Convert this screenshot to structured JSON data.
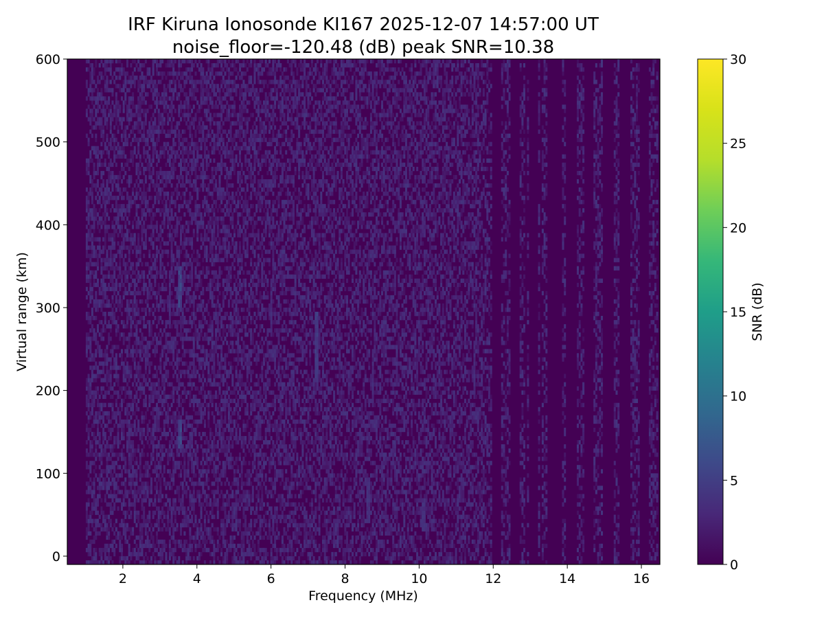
{
  "chart_data": {
    "type": "heatmap",
    "title_line1": "IRF Kiruna Ionosonde KI167 2025-12-07 14:57:00  UT",
    "title_line2": "noise_floor=-120.48 (dB) peak SNR=10.38",
    "xlabel": "Frequency (MHz)",
    "ylabel": "Virtual range (km)",
    "colorbar_label": "SNR (dB)",
    "colormap": "viridis",
    "xlim": [
      0.5,
      16.5
    ],
    "ylim": [
      -10,
      600
    ],
    "clim": [
      0,
      30
    ],
    "x_ticks": [
      {
        "value": 2,
        "label": "2"
      },
      {
        "value": 4,
        "label": "4"
      },
      {
        "value": 6,
        "label": "6"
      },
      {
        "value": 8,
        "label": "8"
      },
      {
        "value": 10,
        "label": "10"
      },
      {
        "value": 12,
        "label": "12"
      },
      {
        "value": 14,
        "label": "14"
      },
      {
        "value": 16,
        "label": "16"
      }
    ],
    "y_ticks": [
      {
        "value": 0,
        "label": "0"
      },
      {
        "value": 100,
        "label": "100"
      },
      {
        "value": 200,
        "label": "200"
      },
      {
        "value": 300,
        "label": "300"
      },
      {
        "value": 400,
        "label": "400"
      },
      {
        "value": 500,
        "label": "500"
      },
      {
        "value": 600,
        "label": "600"
      }
    ],
    "colorbar_ticks": [
      {
        "value": 0,
        "label": "0"
      },
      {
        "value": 5,
        "label": "5"
      },
      {
        "value": 10,
        "label": "10"
      },
      {
        "value": 15,
        "label": "15"
      },
      {
        "value": 20,
        "label": "20"
      },
      {
        "value": 25,
        "label": "25"
      },
      {
        "value": 30,
        "label": "30"
      }
    ],
    "noise_floor_db": -120.48,
    "peak_snr_db": 10.38,
    "data_freq_range_mhz": [
      0.5,
      16.45
    ],
    "data_range_range_km": [
      -10,
      600
    ],
    "features": [
      {
        "description": "dense low-SNR noise region",
        "freq_mhz": [
          0.95,
          11.7
        ],
        "range_km": [
          -10,
          600
        ],
        "typical_snr_db": [
          0,
          4
        ]
      },
      {
        "description": "sparse interference columns",
        "freq_mhz": [
          11.7,
          16.4
        ],
        "typical_snr_db": [
          0,
          5
        ]
      },
      {
        "description": "enhanced column",
        "freq_mhz": 3.5,
        "range_km": [
          300,
          345
        ],
        "snr_db": 6
      },
      {
        "description": "enhanced column",
        "freq_mhz": 3.5,
        "range_km": [
          130,
          160
        ],
        "snr_db": 6
      },
      {
        "description": "enhanced column",
        "freq_mhz": 7.2,
        "range_km": [
          210,
          290
        ],
        "snr_db": 5
      },
      {
        "description": "enhanced column",
        "freq_mhz": 13.5,
        "range_km": [
          350,
          390
        ],
        "snr_db": 6
      },
      {
        "description": "enhanced column",
        "freq_mhz": 13.5,
        "range_km": [
          240,
          290
        ],
        "snr_db": 6
      },
      {
        "description": "enhanced column",
        "freq_mhz": 13.5,
        "range_km": [
          100,
          120
        ],
        "snr_db": 6
      },
      {
        "description": "enhanced column",
        "freq_mhz": 8.6,
        "range_km": [
          40,
          90
        ],
        "snr_db": 4
      },
      {
        "description": "enhanced column",
        "freq_mhz": 10.1,
        "range_km": [
          30,
          60
        ],
        "snr_db": 4
      }
    ]
  }
}
